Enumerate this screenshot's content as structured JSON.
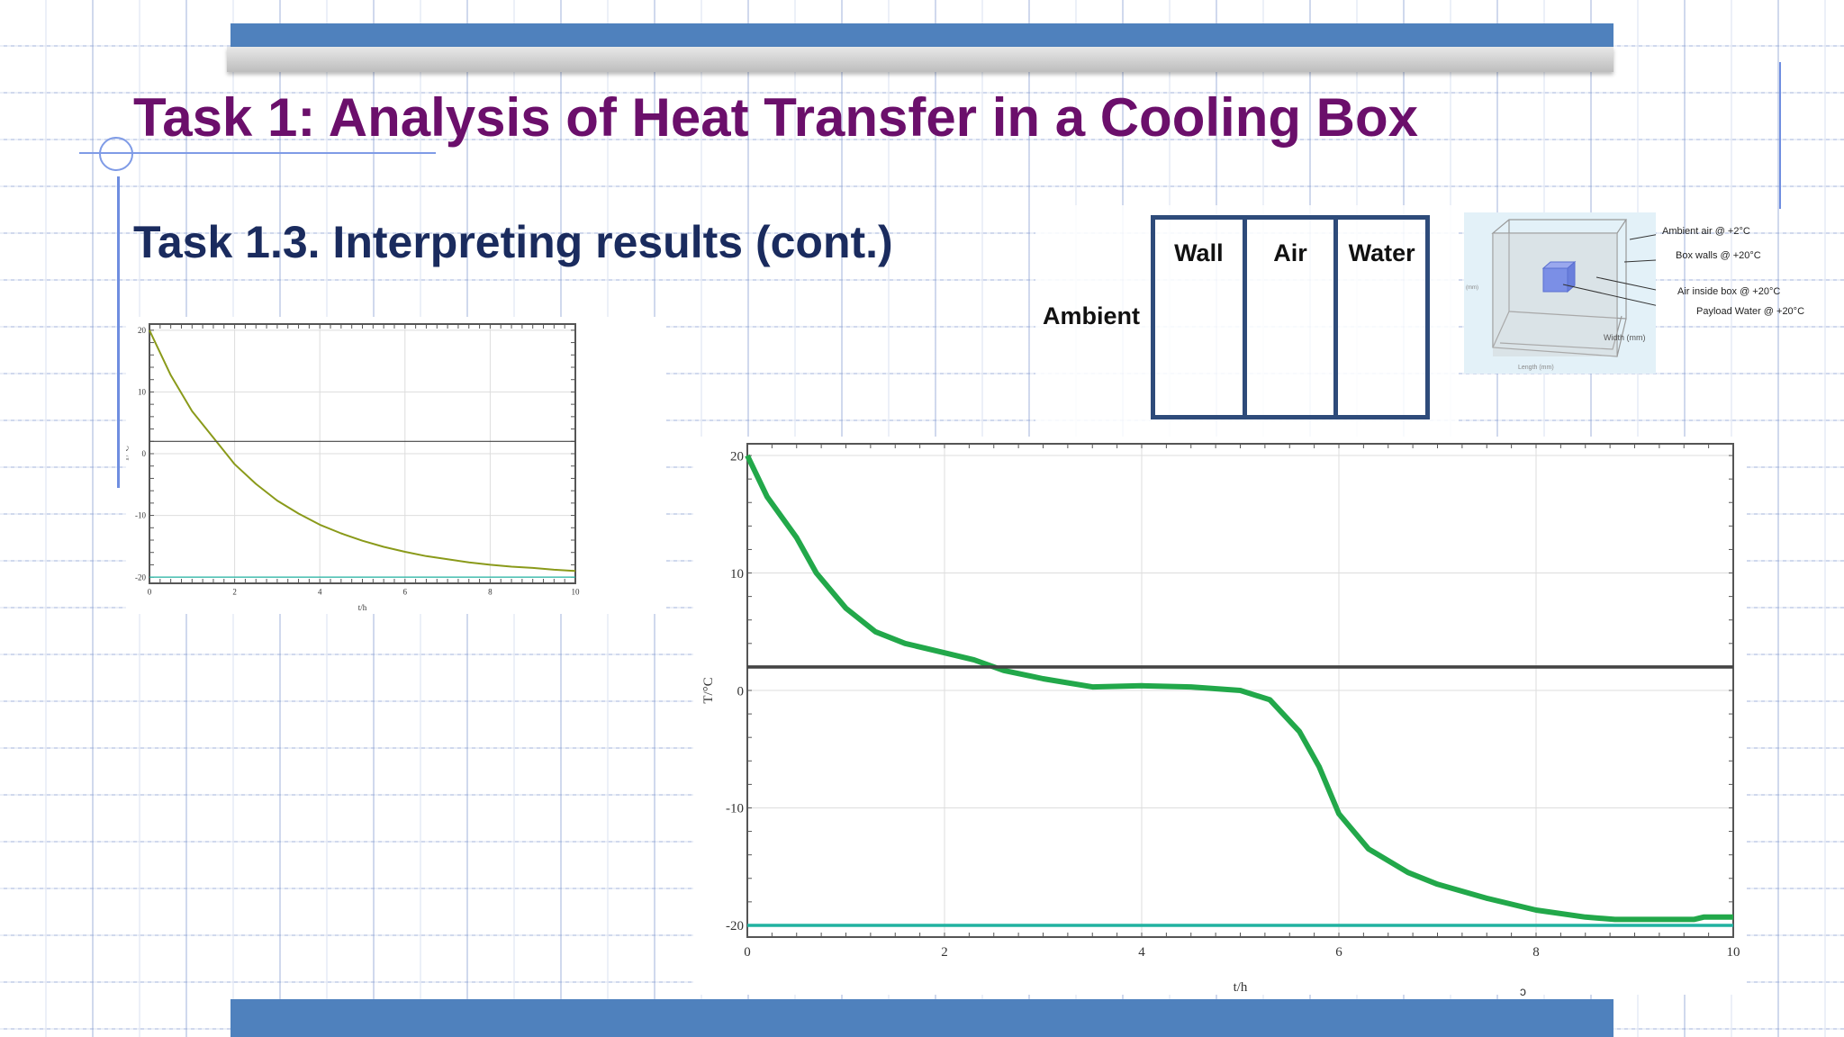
{
  "slide": {
    "title": "Task 1: Analysis of Heat Transfer in a Cooling Box",
    "subtitle": "Task 1.3. Interpreting results (cont.)",
    "accent_color": "#4f81bd",
    "title_color": "#6b0f6b",
    "subtitle_color": "#1a2b5e"
  },
  "diagram": {
    "ambient_label": "Ambient",
    "layers": [
      "Wall",
      "Air",
      "Water"
    ]
  },
  "box_figure": {
    "labels": [
      "Ambient air @ +2°C",
      "Box walls @ +20°C",
      "Air inside box @ +20°C",
      "Payload Water @ +20°C"
    ],
    "axis_labels": {
      "length": "Length (mm)",
      "width": "Width (mm)",
      "height": "(mm)"
    }
  },
  "chart_data": [
    {
      "type": "line",
      "xlabel": "t/h",
      "ylabel": "T/°C",
      "xlim": [
        0,
        10
      ],
      "ylim": [
        -21,
        21
      ],
      "xticks": [
        0,
        2,
        4,
        6,
        8,
        10
      ],
      "yticks": [
        -20,
        -10,
        0,
        10,
        20
      ],
      "grid": true,
      "series": [
        {
          "color": "#8a9a1a",
          "x": [
            0,
            0.5,
            1,
            1.5,
            2,
            2.5,
            3,
            3.5,
            4,
            4.5,
            5,
            5.5,
            6,
            6.5,
            7,
            7.5,
            8,
            8.5,
            9,
            9.5,
            10
          ],
          "y": [
            20,
            12.7,
            6.9,
            2.6,
            -1.7,
            -4.9,
            -7.6,
            -9.7,
            -11.5,
            -12.9,
            -14.1,
            -15.1,
            -15.9,
            -16.6,
            -17.1,
            -17.6,
            -18.0,
            -18.3,
            -18.5,
            -18.8,
            -19.0
          ]
        },
        {
          "color": "#444444",
          "x": [
            0,
            10
          ],
          "y": [
            2,
            2
          ]
        },
        {
          "color": "#20b2a0",
          "x": [
            0,
            10
          ],
          "y": [
            -20,
            -20
          ]
        }
      ]
    },
    {
      "type": "line",
      "xlabel": "t/h",
      "ylabel": "T/°C",
      "xlim": [
        0,
        10
      ],
      "ylim": [
        -21,
        21
      ],
      "xticks": [
        0,
        2,
        4,
        6,
        8,
        10
      ],
      "yticks": [
        -20,
        -10,
        0,
        10,
        20
      ],
      "grid": true,
      "series": [
        {
          "color": "#22a84a",
          "x": [
            0,
            0.2,
            0.5,
            0.7,
            1,
            1.3,
            1.6,
            2,
            2.3,
            2.6,
            3,
            3.5,
            4,
            4.5,
            5,
            5.3,
            5.6,
            5.8,
            6,
            6.3,
            6.7,
            7,
            7.5,
            8,
            8.5,
            8.8,
            9.6,
            9.7,
            10
          ],
          "y": [
            20,
            16.5,
            13,
            10,
            7,
            5,
            4,
            3.2,
            2.6,
            1.7,
            1.0,
            0.3,
            0.4,
            0.3,
            0,
            -0.8,
            -3.5,
            -6.5,
            -10.5,
            -13.5,
            -15.5,
            -16.5,
            -17.7,
            -18.7,
            -19.3,
            -19.5,
            -19.5,
            -19.3,
            -19.3
          ]
        },
        {
          "color": "#444444",
          "x": [
            0,
            10
          ],
          "y": [
            2,
            2
          ]
        },
        {
          "color": "#20b2a0",
          "x": [
            0,
            10
          ],
          "y": [
            -20,
            -20
          ]
        }
      ]
    }
  ]
}
